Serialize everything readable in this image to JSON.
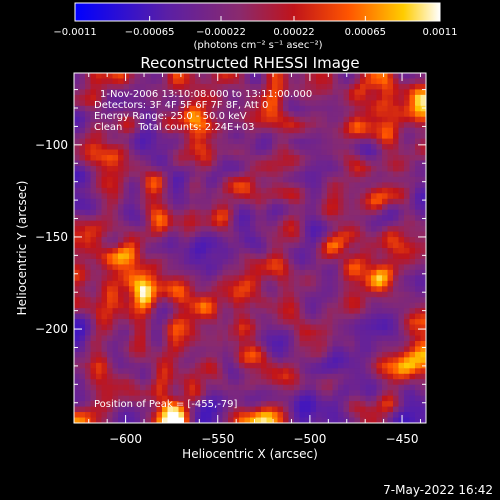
{
  "chart_data": {
    "type": "heatmap",
    "title": "Reconstructed RHESSI Image",
    "xlabel": "Heliocentric X (arcsec)",
    "ylabel": "Heliocentric Y (arcsec)",
    "xlim": [
      -628,
      -437
    ],
    "ylim": [
      -251,
      -61
    ],
    "x_ticks": [
      -600,
      -550,
      -500,
      -450
    ],
    "x_tick_labels": [
      "−600",
      "−550",
      "−500",
      "−450"
    ],
    "y_ticks": [
      -100,
      -150,
      -200
    ],
    "y_tick_labels": [
      "−100",
      "−150",
      "−200"
    ],
    "colorbar": {
      "range": [
        -0.0011,
        0.0011
      ],
      "tick_values": [
        -0.0011,
        -0.00065,
        -0.00022,
        0.00022,
        0.00065,
        0.0011
      ],
      "tick_labels": [
        "−0.0011",
        "−0.00065",
        "−0.00022",
        "0.00022",
        "0.00065",
        "0.0011"
      ],
      "label": "(photons cm⁻² s⁻¹ asec⁻²)",
      "colors": [
        "#0000ff",
        "#5a1fa6",
        "#8a2a6e",
        "#c0141a",
        "#ff5500",
        "#ffcc00",
        "#ffffff"
      ]
    },
    "annotations": [
      "1-Nov-2006 13:10:08.000 to 13:11:00.000",
      "Detectors: 3F 4F 5F 6F 7F 8F, Att 0",
      "Energy Range: 25.0 - 50.0 keV",
      "Clean     Total counts: 2.24E+03",
      "Position of Peak = [-455,-79]"
    ],
    "grid": false,
    "peak": {
      "x": -455,
      "y": -79
    }
  },
  "footer": {
    "timestamp": "7-May-2022 16:42"
  }
}
